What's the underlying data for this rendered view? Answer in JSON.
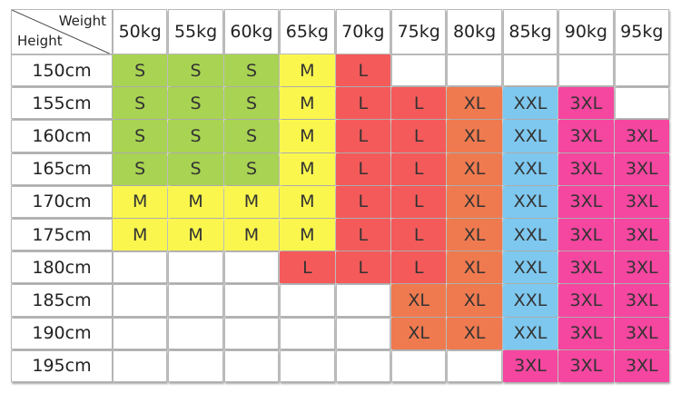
{
  "corner": {
    "top_label": "Weight",
    "bottom_label": "Height"
  },
  "weights": [
    "50kg",
    "55kg",
    "60kg",
    "65kg",
    "70kg",
    "75kg",
    "80kg",
    "85kg",
    "90kg",
    "95kg"
  ],
  "rows": [
    {
      "height": "150cm",
      "sizes": [
        "S",
        "S",
        "S",
        "M",
        "L",
        "",
        "",
        "",
        "",
        ""
      ]
    },
    {
      "height": "155cm",
      "sizes": [
        "S",
        "S",
        "S",
        "M",
        "L",
        "L",
        "XL",
        "XXL",
        "3XL",
        ""
      ]
    },
    {
      "height": "160cm",
      "sizes": [
        "S",
        "S",
        "S",
        "M",
        "L",
        "L",
        "XL",
        "XXL",
        "3XL",
        "3XL"
      ]
    },
    {
      "height": "165cm",
      "sizes": [
        "S",
        "S",
        "S",
        "M",
        "L",
        "L",
        "XL",
        "XXL",
        "3XL",
        "3XL"
      ]
    },
    {
      "height": "170cm",
      "sizes": [
        "M",
        "M",
        "M",
        "M",
        "L",
        "L",
        "XL",
        "XXL",
        "3XL",
        "3XL"
      ]
    },
    {
      "height": "175cm",
      "sizes": [
        "M",
        "M",
        "M",
        "M",
        "L",
        "L",
        "XL",
        "XXL",
        "3XL",
        "3XL"
      ]
    },
    {
      "height": "180cm",
      "sizes": [
        "",
        "",
        "",
        "L",
        "L",
        "L",
        "XL",
        "XXL",
        "3XL",
        "3XL"
      ]
    },
    {
      "height": "185cm",
      "sizes": [
        "",
        "",
        "",
        "",
        "",
        "XL",
        "XL",
        "XXL",
        "3XL",
        "3XL"
      ]
    },
    {
      "height": "190cm",
      "sizes": [
        "",
        "",
        "",
        "",
        "",
        "XL",
        "XL",
        "XXL",
        "3XL",
        "3XL"
      ]
    },
    {
      "height": "195cm",
      "sizes": [
        "",
        "",
        "",
        "",
        "",
        "",
        "",
        "3XL",
        "3XL",
        "3XL"
      ]
    }
  ],
  "size_colors": {
    "S": "#a9d352",
    "M": "#faf64d",
    "L": "#f55a5a",
    "XL": "#ef7a4f",
    "XXL": "#7ec8ef",
    "3XL": "#f546a0",
    "empty": "#ffffff"
  }
}
